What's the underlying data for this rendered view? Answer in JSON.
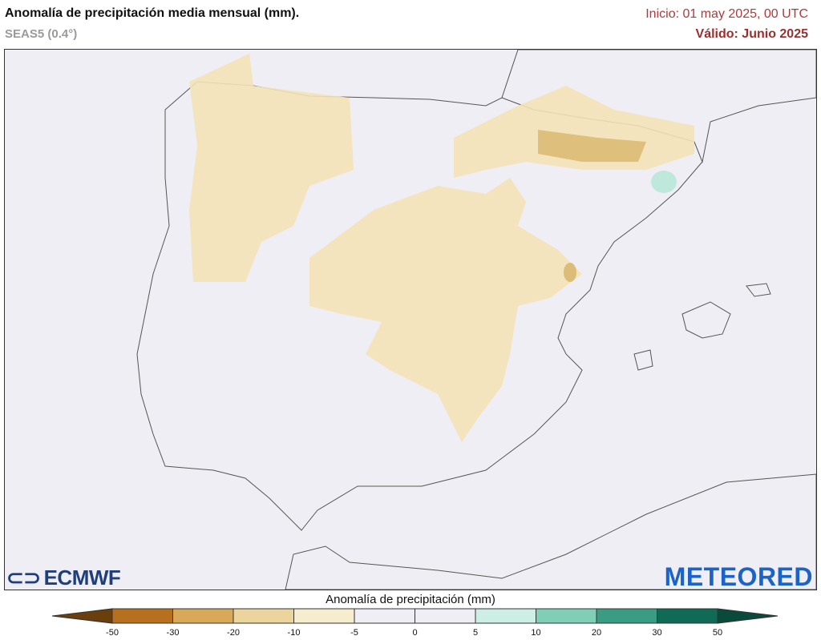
{
  "header": {
    "title": "Anomalía de precipitación media mensual (mm).",
    "model": "SEAS5 (0.4°)",
    "init": "Inicio: 01 may 2025, 00 UTC",
    "valid": "Válido: Junio 2025"
  },
  "logos": {
    "left": "ECMWF",
    "right": "METEORED"
  },
  "legend": {
    "title": "Anomalía de precipitación (mm)",
    "ticks": [
      "-50",
      "-30",
      "-20",
      "-10",
      "-5",
      "0",
      "5",
      "10",
      "20",
      "30",
      "50"
    ],
    "colors": [
      "#6b3f0c",
      "#b7701e",
      "#d9a95a",
      "#ecd59c",
      "#f6edcf",
      "#efeef4",
      "#efeef4",
      "#cdeee4",
      "#7fcfb7",
      "#3a9d83",
      "#0f6b55",
      "#0a4a3a"
    ]
  },
  "map": {
    "ocean_color": "#efeef4",
    "land_color": "#efeef4",
    "dry_color": "#f3e2b8",
    "very_dry_color": "#d9b870",
    "wet_color": "#bfe8dc"
  }
}
